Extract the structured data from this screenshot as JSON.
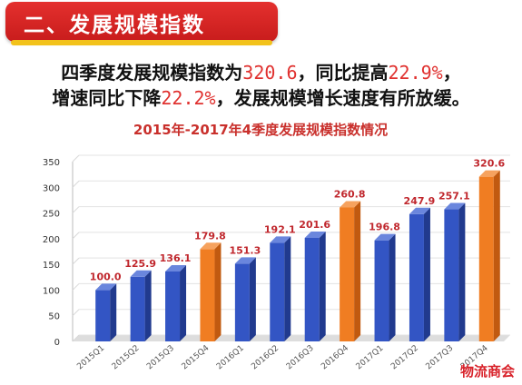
{
  "banner": {
    "title": "二、发展规模指数"
  },
  "summary": {
    "line1_pre": "四季度发展规模指数为",
    "line1_val1": "320.6",
    "line1_mid": "，同比提高",
    "line1_val2": "22.9%",
    "line1_end": "，",
    "line2_pre": "增速同比下降",
    "line2_val": "22.2%",
    "line2_end": "，发展规模增长速度有所放缓。"
  },
  "colors": {
    "blue": "#3355c4",
    "orange": "#f07d22",
    "title_red": "#c9302c",
    "highlight": "#e0312f"
  },
  "chart_data": {
    "type": "bar",
    "title": "2015年-2017年4季度发展规模指数情况",
    "categories": [
      "2015Q1",
      "2015Q2",
      "2015Q3",
      "2015Q4",
      "2016Q1",
      "2016Q2",
      "2016Q3",
      "2016Q4",
      "2017Q1",
      "2017Q2",
      "2017Q3",
      "2017Q4"
    ],
    "values": [
      100.0,
      125.9,
      136.1,
      179.8,
      151.3,
      192.1,
      201.6,
      260.8,
      196.8,
      247.9,
      257.1,
      320.6
    ],
    "value_labels": [
      "100.0",
      "125.9",
      "136.1",
      "179.8",
      "151.3",
      "192.1",
      "201.6",
      "260.8",
      "196.8",
      "247.9",
      "257.1",
      "320.6"
    ],
    "highlight_categories": [
      "2015Q4",
      "2016Q4",
      "2017Q4"
    ],
    "yticks": [
      0,
      50,
      100,
      150,
      200,
      250,
      300,
      350
    ],
    "ylim": [
      0,
      350
    ],
    "grid": true,
    "legend": "none"
  },
  "watermark": "物流商会"
}
